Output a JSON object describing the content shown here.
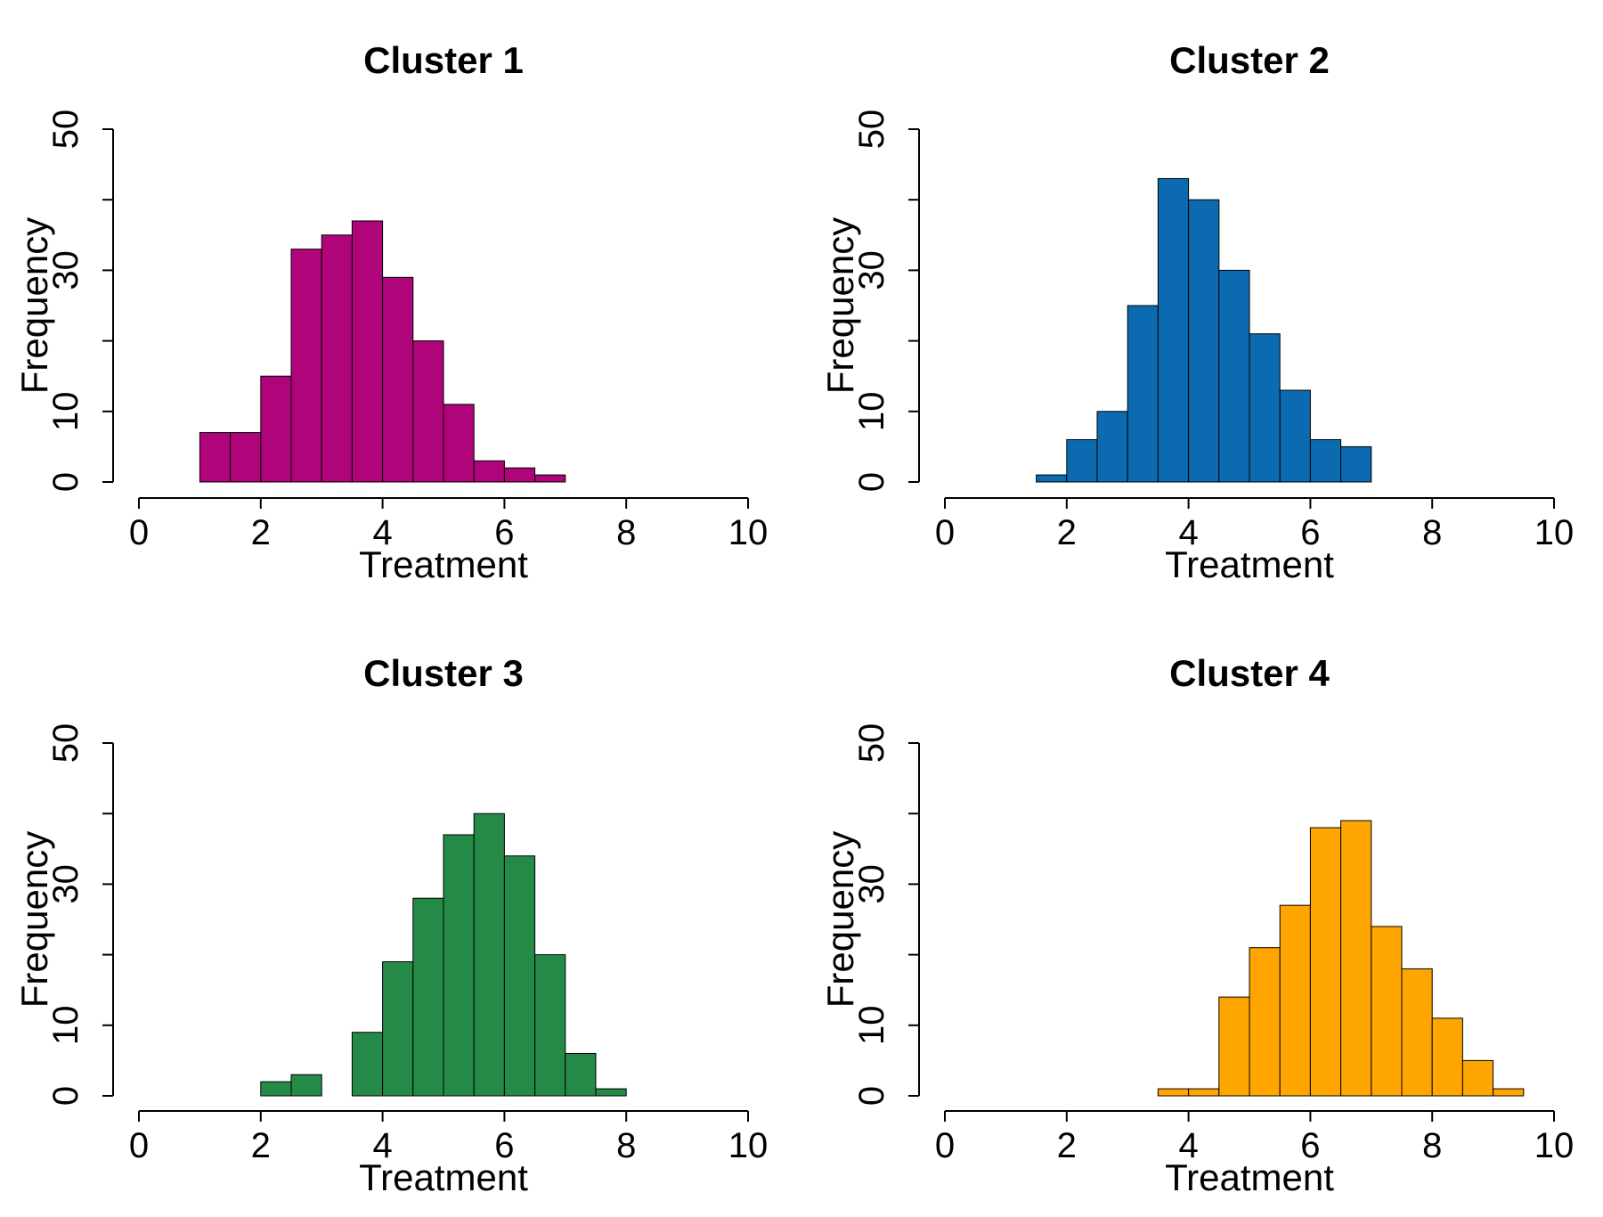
{
  "chart_data": [
    {
      "type": "bar",
      "title": "Cluster 1",
      "xlabel": "Treatment",
      "ylabel": "Frequency",
      "xlim": [
        0,
        10
      ],
      "ylim": [
        0,
        50
      ],
      "xticks": [
        "0",
        "2",
        "4",
        "6",
        "8",
        "10"
      ],
      "yticks": [
        "0",
        "10",
        "30",
        "50"
      ],
      "bin_width": 0.5,
      "bins": [
        1.0,
        1.5,
        2.0,
        2.5,
        3.0,
        3.5,
        4.0,
        4.5,
        5.0,
        5.5,
        6.0,
        6.5
      ],
      "values": [
        7,
        7,
        15,
        33,
        35,
        37,
        29,
        20,
        11,
        3,
        2,
        1
      ],
      "color": "#B0047A",
      "grid": false
    },
    {
      "type": "bar",
      "title": "Cluster 2",
      "xlabel": "Treatment",
      "ylabel": "Frequency",
      "xlim": [
        0,
        10
      ],
      "ylim": [
        0,
        50
      ],
      "xticks": [
        "0",
        "2",
        "4",
        "6",
        "8",
        "10"
      ],
      "yticks": [
        "0",
        "10",
        "30",
        "50"
      ],
      "bin_width": 0.5,
      "bins": [
        1.5,
        2.0,
        2.5,
        3.0,
        3.5,
        4.0,
        4.5,
        5.0,
        5.5,
        6.0,
        6.5
      ],
      "values": [
        1,
        6,
        10,
        25,
        43,
        40,
        30,
        21,
        13,
        6,
        5
      ],
      "color": "#0B6AB0",
      "grid": false
    },
    {
      "type": "bar",
      "title": "Cluster 3",
      "xlabel": "Treatment",
      "ylabel": "Frequency",
      "xlim": [
        0,
        10
      ],
      "ylim": [
        0,
        50
      ],
      "xticks": [
        "0",
        "2",
        "4",
        "6",
        "8",
        "10"
      ],
      "yticks": [
        "0",
        "10",
        "30",
        "50"
      ],
      "bin_width": 0.5,
      "bins": [
        2.0,
        2.5,
        3.0,
        3.5,
        4.0,
        4.5,
        5.0,
        5.5,
        6.0,
        6.5,
        7.0,
        7.5
      ],
      "values": [
        2,
        3,
        0,
        9,
        19,
        28,
        37,
        40,
        34,
        20,
        6,
        1
      ],
      "color": "#258A47",
      "grid": false
    },
    {
      "type": "bar",
      "title": "Cluster 4",
      "xlabel": "Treatment",
      "ylabel": "Frequency",
      "xlim": [
        0,
        10
      ],
      "ylim": [
        0,
        50
      ],
      "xticks": [
        "0",
        "2",
        "4",
        "6",
        "8",
        "10"
      ],
      "yticks": [
        "0",
        "10",
        "30",
        "50"
      ],
      "bin_width": 0.5,
      "bins": [
        3.5,
        4.0,
        4.5,
        5.0,
        5.5,
        6.0,
        6.5,
        7.0,
        7.5,
        8.0,
        8.5,
        9.0
      ],
      "values": [
        1,
        1,
        14,
        21,
        27,
        38,
        39,
        24,
        18,
        11,
        5,
        1
      ],
      "color": "#FFA500",
      "grid": false
    }
  ]
}
